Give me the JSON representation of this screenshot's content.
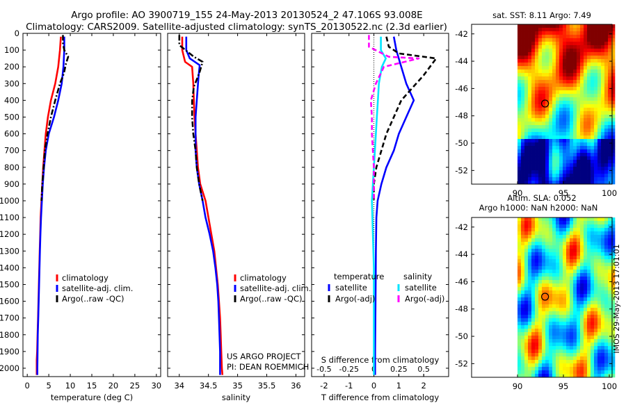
{
  "header": {
    "line1": "Argo profile: AO 3900719_155 24-May-2013 20130524_2 47.106S 93.008E",
    "line2": "Climatology: CARS2009. Satellite-adjusted climatology: synTS_20130522.nc (2.3d earlier)"
  },
  "side_text": "IMOS 29-May-2013 17:01:01",
  "colors": {
    "red": "#ff0000",
    "blue": "#0000ff",
    "black": "#000000",
    "cyan": "#00e5ff",
    "magenta": "#ff00ff"
  },
  "chart_data": [
    {
      "id": "temperature",
      "type": "line",
      "xlabel": "temperature (deg C)",
      "xlim": [
        -1,
        31
      ],
      "ylim": [
        2050,
        0
      ],
      "xticks": [
        0,
        5,
        10,
        15,
        20,
        25,
        30
      ],
      "yticks": [
        0,
        100,
        200,
        300,
        400,
        500,
        600,
        700,
        800,
        900,
        1000,
        1100,
        1200,
        1300,
        1400,
        1500,
        1600,
        1700,
        1800,
        1900,
        2000
      ],
      "legend": [
        {
          "label": "climatology",
          "color": "red"
        },
        {
          "label": "satellite-adj. clim.",
          "color": "blue"
        },
        {
          "label": "Argo(..raw -QC)",
          "color": "black"
        }
      ],
      "series": [
        {
          "name": "climatology",
          "color": "red",
          "dash": "solid",
          "points": [
            [
              7.8,
              20
            ],
            [
              7.6,
              100
            ],
            [
              7.2,
              200
            ],
            [
              6.5,
              300
            ],
            [
              5.5,
              400
            ],
            [
              4.8,
              500
            ],
            [
              4.3,
              600
            ],
            [
              4.0,
              700
            ],
            [
              3.7,
              800
            ],
            [
              3.5,
              900
            ],
            [
              3.3,
              1000
            ],
            [
              3.1,
              1100
            ],
            [
              3.0,
              1200
            ],
            [
              2.9,
              1300
            ],
            [
              2.8,
              1400
            ],
            [
              2.7,
              1500
            ],
            [
              2.6,
              1600
            ],
            [
              2.5,
              1700
            ],
            [
              2.4,
              1800
            ],
            [
              2.3,
              1900
            ],
            [
              2.2,
              1950
            ],
            [
              2.2,
              2040
            ]
          ]
        },
        {
          "name": "satellite-adj. clim.",
          "color": "blue",
          "dash": "solid",
          "points": [
            [
              8.6,
              20
            ],
            [
              8.6,
              100
            ],
            [
              8.4,
              200
            ],
            [
              8.0,
              300
            ],
            [
              7.2,
              400
            ],
            [
              6.2,
              500
            ],
            [
              5.0,
              600
            ],
            [
              4.3,
              700
            ],
            [
              3.9,
              800
            ],
            [
              3.6,
              900
            ],
            [
              3.4,
              1000
            ],
            [
              3.2,
              1100
            ],
            [
              3.05,
              1200
            ],
            [
              2.95,
              1300
            ],
            [
              2.85,
              1400
            ],
            [
              2.75,
              1500
            ],
            [
              2.65,
              1600
            ],
            [
              2.55,
              1700
            ],
            [
              2.45,
              1800
            ],
            [
              2.4,
              1900
            ],
            [
              2.35,
              2000
            ],
            [
              2.35,
              2040
            ]
          ]
        },
        {
          "name": "Argo(..raw -QC)",
          "color": "black",
          "dash": "dashdot",
          "points": [
            [
              8.3,
              10
            ],
            [
              8.3,
              60
            ],
            [
              8.6,
              100
            ],
            [
              9.5,
              140
            ],
            [
              9.0,
              180
            ],
            [
              8.5,
              240
            ],
            [
              7.6,
              300
            ],
            [
              6.5,
              400
            ],
            [
              5.5,
              500
            ],
            [
              4.7,
              600
            ],
            [
              4.1,
              700
            ],
            [
              3.8,
              800
            ],
            [
              3.5,
              900
            ],
            [
              3.3,
              1000
            ]
          ]
        }
      ]
    },
    {
      "id": "salinity",
      "type": "line",
      "xlabel": "salinity",
      "xlim": [
        33.8,
        36.15
      ],
      "ylim": [
        2050,
        0
      ],
      "xticks": [
        34,
        34.5,
        35,
        35.5,
        36
      ],
      "yticks": [
        0,
        100,
        200,
        300,
        400,
        500,
        600,
        700,
        800,
        900,
        1000,
        1100,
        1200,
        1300,
        1400,
        1500,
        1600,
        1700,
        1800,
        1900,
        2000
      ],
      "legend": [
        {
          "label": "climatology",
          "color": "red"
        },
        {
          "label": "satellite-adj. clim.",
          "color": "blue"
        },
        {
          "label": "Argo(..raw -QC)",
          "color": "black"
        }
      ],
      "annotations": [
        "US ARGO PROJECT",
        "PI: DEAN ROEMMICH"
      ],
      "series": [
        {
          "name": "climatology",
          "color": "red",
          "dash": "solid",
          "points": [
            [
              34.05,
              20
            ],
            [
              34.05,
              100
            ],
            [
              34.1,
              170
            ],
            [
              34.22,
              200
            ],
            [
              34.24,
              300
            ],
            [
              34.25,
              400
            ],
            [
              34.26,
              500
            ],
            [
              34.28,
              600
            ],
            [
              34.3,
              700
            ],
            [
              34.32,
              800
            ],
            [
              34.36,
              900
            ],
            [
              34.45,
              1000
            ],
            [
              34.5,
              1100
            ],
            [
              34.55,
              1200
            ],
            [
              34.6,
              1300
            ],
            [
              34.63,
              1400
            ],
            [
              34.66,
              1500
            ],
            [
              34.68,
              1600
            ],
            [
              34.7,
              1700
            ],
            [
              34.71,
              1800
            ],
            [
              34.72,
              1900
            ],
            [
              34.73,
              2000
            ],
            [
              34.74,
              2040
            ]
          ]
        },
        {
          "name": "satellite-adj. clim.",
          "color": "blue",
          "dash": "solid",
          "points": [
            [
              34.12,
              20
            ],
            [
              34.12,
              100
            ],
            [
              34.18,
              150
            ],
            [
              34.35,
              190
            ],
            [
              34.33,
              260
            ],
            [
              34.3,
              400
            ],
            [
              34.28,
              500
            ],
            [
              34.28,
              600
            ],
            [
              34.28,
              700
            ],
            [
              34.3,
              800
            ],
            [
              34.34,
              900
            ],
            [
              34.4,
              1000
            ],
            [
              34.45,
              1100
            ],
            [
              34.52,
              1200
            ],
            [
              34.58,
              1300
            ],
            [
              34.62,
              1400
            ],
            [
              34.65,
              1500
            ],
            [
              34.67,
              1600
            ],
            [
              34.68,
              1700
            ],
            [
              34.69,
              1800
            ],
            [
              34.7,
              1900
            ],
            [
              34.7,
              2000
            ],
            [
              34.7,
              2040
            ]
          ]
        },
        {
          "name": "Argo(..raw -QC)",
          "color": "black",
          "dash": "dashdot",
          "points": [
            [
              34.0,
              10
            ],
            [
              34.0,
              70
            ],
            [
              34.25,
              140
            ],
            [
              34.4,
              170
            ],
            [
              34.35,
              230
            ],
            [
              34.25,
              320
            ],
            [
              34.22,
              400
            ],
            [
              34.22,
              500
            ],
            [
              34.24,
              600
            ],
            [
              34.28,
              700
            ],
            [
              34.3,
              800
            ],
            [
              34.34,
              900
            ],
            [
              34.4,
              1000
            ]
          ]
        }
      ]
    },
    {
      "id": "difference",
      "type": "line",
      "xlabel": "T difference from climatology",
      "xlabel2": "S difference from climatology",
      "xlim": [
        -2.5,
        3
      ],
      "ylim": [
        2050,
        0
      ],
      "xticks": [
        -2,
        -1,
        0,
        1,
        2
      ],
      "xticks2": [
        {
          "value": -0.5,
          "label": "-0.5"
        },
        {
          "value": -0.25,
          "label": "-0.25"
        },
        {
          "value": 0,
          "label": "0"
        },
        {
          "value": 0.25,
          "label": "0.25"
        },
        {
          "value": 0.5,
          "label": "0.5"
        }
      ],
      "s_scale": 4,
      "yticks": [
        0,
        100,
        200,
        300,
        400,
        500,
        600,
        700,
        800,
        900,
        1000,
        1100,
        1200,
        1300,
        1400,
        1500,
        1600,
        1700,
        1800,
        1900,
        2000
      ],
      "legend_titles": [
        "temperature",
        "salinity"
      ],
      "legend": [
        {
          "label": "satellite",
          "color": "blue",
          "group": "temperature"
        },
        {
          "label": "Argo(-adj)",
          "color": "black",
          "group": "temperature"
        },
        {
          "label": "satellite",
          "color": "cyan",
          "group": "salinity"
        },
        {
          "label": "Argo(-adj)",
          "color": "magenta",
          "group": "salinity"
        }
      ],
      "series": [
        {
          "name": "T satellite",
          "color": "blue",
          "dash": "solid",
          "points": [
            [
              0.8,
              20
            ],
            [
              0.9,
              100
            ],
            [
              1.1,
              200
            ],
            [
              1.3,
              300
            ],
            [
              1.6,
              400
            ],
            [
              1.3,
              500
            ],
            [
              1.0,
              600
            ],
            [
              0.8,
              700
            ],
            [
              0.5,
              800
            ],
            [
              0.3,
              900
            ],
            [
              0.15,
              1000
            ],
            [
              0.1,
              1100
            ],
            [
              0.08,
              1300
            ],
            [
              0.07,
              1500
            ],
            [
              0.06,
              1700
            ],
            [
              0.05,
              1900
            ],
            [
              0.05,
              2040
            ]
          ]
        },
        {
          "name": "T Argo(-adj)",
          "color": "black",
          "dash": "dashed",
          "points": [
            [
              0.5,
              20
            ],
            [
              0.6,
              80
            ],
            [
              1.0,
              120
            ],
            [
              2.5,
              150
            ],
            [
              2.0,
              250
            ],
            [
              1.7,
              300
            ],
            [
              1.1,
              400
            ],
            [
              0.8,
              500
            ],
            [
              0.5,
              600
            ],
            [
              0.3,
              700
            ],
            [
              0.1,
              800
            ],
            [
              0.0,
              900
            ],
            [
              0.0,
              1000
            ]
          ]
        },
        {
          "name": "S satellite",
          "color": "cyan",
          "dash": "solid",
          "points": [
            [
              0.07,
              20
            ],
            [
              0.07,
              100
            ],
            [
              0.12,
              150
            ],
            [
              0.08,
              200
            ],
            [
              0.05,
              300
            ],
            [
              0.04,
              400
            ],
            [
              0.03,
              500
            ],
            [
              0.02,
              600
            ],
            [
              0.01,
              700
            ],
            [
              0.0,
              800
            ],
            [
              -0.01,
              900
            ],
            [
              -0.02,
              1000
            ],
            [
              -0.01,
              1200
            ],
            [
              0.0,
              1400
            ],
            [
              0.0,
              1600
            ],
            [
              0.0,
              1800
            ],
            [
              0.0,
              2040
            ]
          ]
        },
        {
          "name": "S Argo(-adj)",
          "color": "magenta",
          "dash": "dashed",
          "points": [
            [
              -0.05,
              10
            ],
            [
              -0.05,
              80
            ],
            [
              0.15,
              140
            ],
            [
              0.45,
              150
            ],
            [
              0.1,
              200
            ],
            [
              0.02,
              300
            ],
            [
              -0.03,
              400
            ],
            [
              -0.02,
              500
            ],
            [
              -0.02,
              600
            ],
            [
              -0.01,
              700
            ],
            [
              0.0,
              800
            ],
            [
              0.0,
              900
            ],
            [
              0.0,
              1000
            ]
          ]
        }
      ]
    }
  ],
  "maps": [
    {
      "id": "sst-map",
      "title": "sat. SST: 8.11 Argo: 7.49",
      "yticks": [
        {
          "value": -42,
          "label": "-42"
        },
        {
          "value": -44,
          "label": "-44"
        },
        {
          "value": -46,
          "label": "-46"
        },
        {
          "value": -48,
          "label": "-48"
        },
        {
          "value": -50,
          "label": "-50"
        },
        {
          "value": -52,
          "label": "-52"
        }
      ],
      "xticks": [
        {
          "value": 90,
          "label": "90"
        },
        {
          "value": 95,
          "label": "95"
        },
        {
          "value": 100,
          "label": "100"
        }
      ],
      "xlim": [
        85,
        100.3
      ],
      "ylim": [
        -53,
        -41.3
      ],
      "data_x_start": 90,
      "marker": [
        93.0,
        -47.1
      ]
    },
    {
      "id": "sla-map",
      "title": "Altim. SLA: 0.052",
      "subtitle": "Argo h1000: NaN h2000: NaN",
      "yticks": [
        {
          "value": -42,
          "label": "-42"
        },
        {
          "value": -44,
          "label": "-44"
        },
        {
          "value": -46,
          "label": "-46"
        },
        {
          "value": -48,
          "label": "-48"
        },
        {
          "value": -50,
          "label": "-50"
        },
        {
          "value": -52,
          "label": "-52"
        }
      ],
      "xticks": [
        {
          "value": 90,
          "label": "90"
        },
        {
          "value": 95,
          "label": "95"
        },
        {
          "value": 100,
          "label": "100"
        }
      ],
      "xlim": [
        85,
        100.3
      ],
      "ylim": [
        -53,
        -41.3
      ],
      "data_x_start": 90,
      "marker": [
        93.0,
        -47.1
      ]
    }
  ]
}
